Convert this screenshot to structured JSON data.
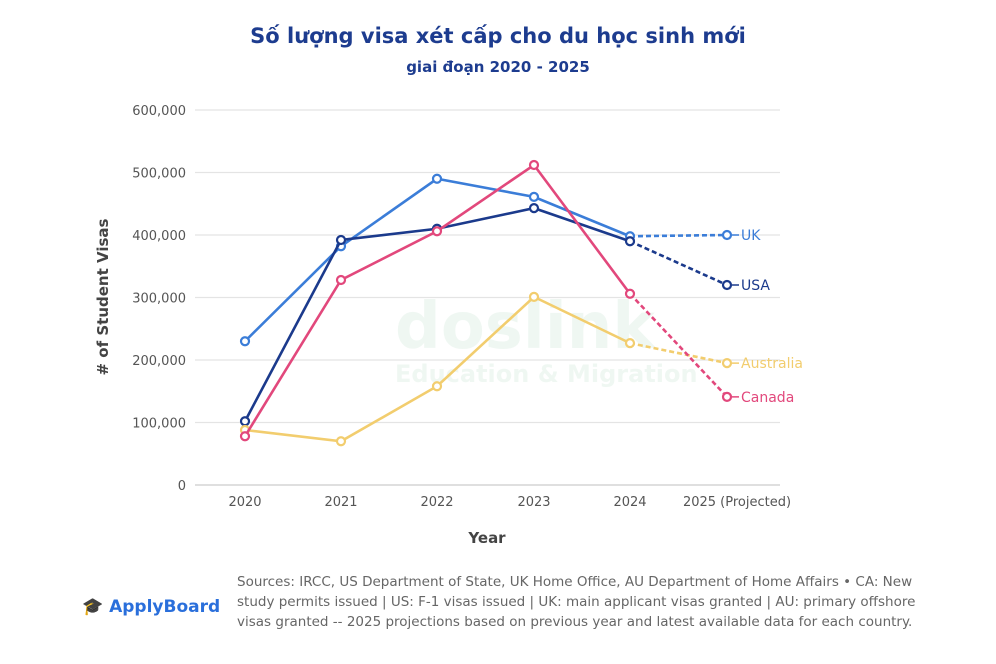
{
  "title": "Số lượng visa xét cấp cho du học sinh mới",
  "subtitle": "giai đoạn 2020 - 2025",
  "watermark": {
    "name": "doslink",
    "tagline": "Education & Migration"
  },
  "logo": "ApplyBoard",
  "sources": "Sources: IRCC, US Department of State, UK Home Office, AU Department of Home Affairs • CA: New study permits issued | US: F-1 visas issued | UK: main applicant visas granted | AU: primary offshore visas granted -- 2025 projections based on previous year and latest available data for each country.",
  "chart_data": {
    "type": "line",
    "xlabel": "Year",
    "ylabel": "# of Student Visas",
    "categories": [
      "2020",
      "2021",
      "2022",
      "2023",
      "2024",
      "2025 (Projected)"
    ],
    "ylim": [
      0,
      600000
    ],
    "yticks": [
      "0",
      "100,000",
      "200,000",
      "300,000",
      "400,000",
      "500,000",
      "600,000"
    ],
    "grid": true,
    "legend": "inline labels at line ends",
    "projected_from_index": 4,
    "series": [
      {
        "name": "UK",
        "color": "#3b7dd8",
        "values": [
          230000,
          382000,
          490000,
          461000,
          398000,
          400000
        ]
      },
      {
        "name": "USA",
        "color": "#1b3a8c",
        "values": [
          102000,
          392000,
          410000,
          443000,
          390000,
          320000
        ]
      },
      {
        "name": "Australia",
        "color": "#f2cd6e",
        "values": [
          88000,
          70000,
          158000,
          301000,
          227000,
          195000
        ]
      },
      {
        "name": "Canada",
        "color": "#e2487c",
        "values": [
          78000,
          328000,
          406000,
          512000,
          306000,
          141000
        ]
      }
    ]
  }
}
